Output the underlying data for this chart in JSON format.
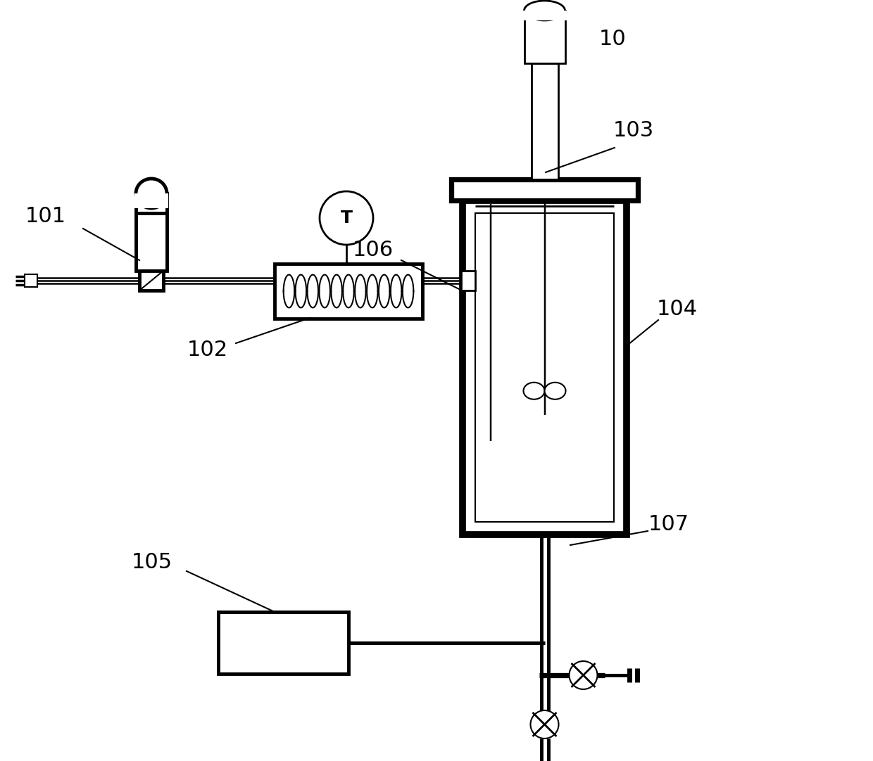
{
  "bg": "#ffffff",
  "lc": "#000000",
  "fw": 12.4,
  "fh": 10.82,
  "dpi": 100,
  "lw_thick": 3.5,
  "lw_med": 2.0,
  "lw_thin": 1.5,
  "lw_pipe": 1.8
}
